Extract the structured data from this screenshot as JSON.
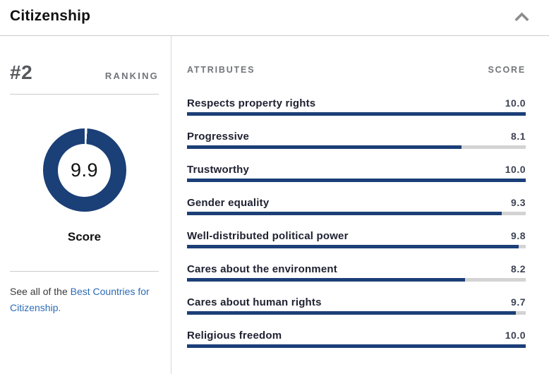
{
  "header": {
    "title": "Citizenship",
    "collapse_icon": "chevron-up-icon"
  },
  "ranking": {
    "value": "#2",
    "label": "RANKING"
  },
  "score_donut": {
    "score": "9.9",
    "max": 10,
    "label": "Score"
  },
  "see_all": {
    "prefix": "See all of the ",
    "link_text": "Best Countries for Citizenship."
  },
  "attributes": {
    "columns": {
      "name_col": "ATTRIBUTES",
      "score_col": "SCORE"
    },
    "rows": [
      {
        "label": "Respects property rights",
        "score": "10.0"
      },
      {
        "label": "Progressive",
        "score": "8.1"
      },
      {
        "label": "Trustworthy",
        "score": "10.0"
      },
      {
        "label": "Gender equality",
        "score": "9.3"
      },
      {
        "label": "Well-distributed political power",
        "score": "9.8"
      },
      {
        "label": "Cares about the environment",
        "score": "8.2"
      },
      {
        "label": "Cares about human rights",
        "score": "9.7"
      },
      {
        "label": "Religious freedom",
        "score": "10.0"
      }
    ]
  },
  "chart_data": {
    "type": "bar",
    "categories": [
      "Respects property rights",
      "Progressive",
      "Trustworthy",
      "Gender equality",
      "Well-distributed political power",
      "Cares about the environment",
      "Cares about human rights",
      "Religious freedom"
    ],
    "values": [
      10.0,
      8.1,
      10.0,
      9.3,
      9.8,
      8.2,
      9.7,
      10.0
    ],
    "title": "Citizenship attribute scores",
    "xlim": [
      0,
      10
    ],
    "donut": {
      "score": 9.9,
      "max": 10
    }
  },
  "colors": {
    "accent_navy": "#1b3f77",
    "bar_track": "#d3d3d3",
    "link_blue": "#2e6cb5",
    "muted_gray": "#72757a",
    "divider_gray": "#cbcbcb"
  }
}
